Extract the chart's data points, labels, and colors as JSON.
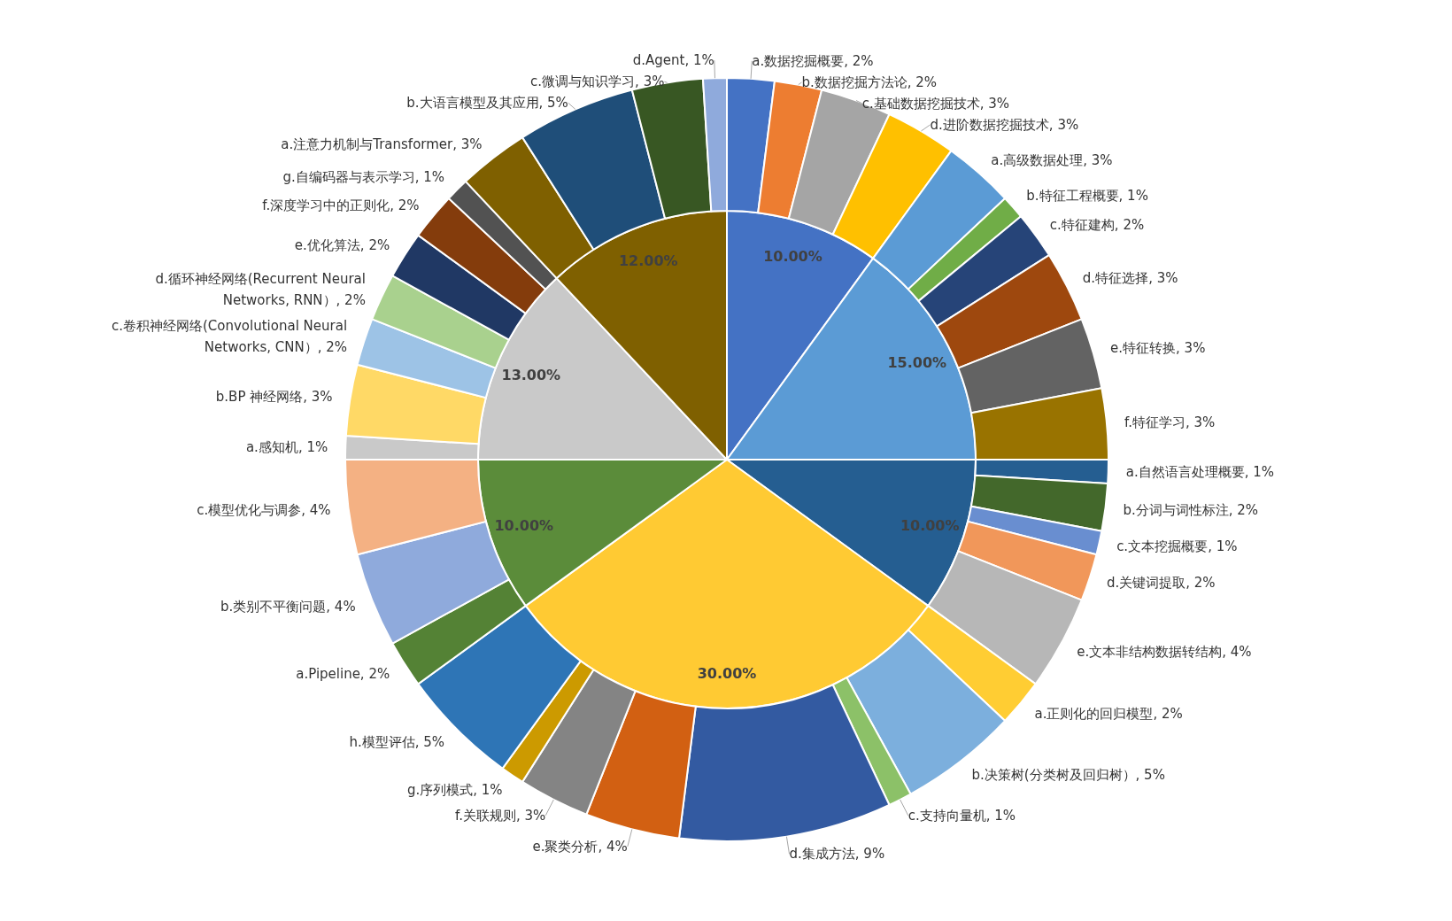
{
  "chart_data": {
    "type": "pie",
    "series": [
      {
        "values": [
          10,
          15,
          10,
          30,
          10,
          13,
          12
        ],
        "value_labels": [
          "10.00%",
          "15.00%",
          "10.00%",
          "30.00%",
          "10.00%",
          "13.00%",
          "12.00%"
        ],
        "colors": [
          "#4472c4",
          "#5b9bd5",
          "#255e91",
          "#ffca33",
          "#5b8c3a",
          "#c9c9c9",
          "#7f6000"
        ]
      },
      {
        "values": [
          2,
          2,
          3,
          3,
          3,
          1,
          2,
          3,
          3,
          3,
          1,
          2,
          1,
          2,
          4,
          2,
          5,
          1,
          9,
          4,
          3,
          1,
          5,
          2,
          4,
          4,
          1,
          3,
          2,
          2,
          2,
          2,
          1,
          3,
          5,
          3,
          1
        ],
        "value_labels": [
          "a.数据挖掘概要, 2%",
          "b.数据挖掘方法论, 2%",
          "c.基础数据挖掘技术, 3%",
          "d.进阶数据挖掘技术, 3%",
          "a.高级数据处理, 3%",
          "b.特征工程概要, 1%",
          "c.特征建构, 2%",
          "d.特征选择, 3%",
          "e.特征转换, 3%",
          "f.特征学习, 3%",
          "a.自然语言处理概要, 1%",
          "b.分词与词性标注, 2%",
          "c.文本挖掘概要, 1%",
          "d.关键词提取, 2%",
          "e.文本非结构数据转结构, 4%",
          "a.正则化的回归模型, 2%",
          "b.决策树(分类树及回归树）, 5%",
          "c.支持向量机, 1%",
          "d.集成方法, 9%",
          "e.聚类分析, 4%",
          "f.关联规则, 3%",
          "g.序列模式, 1%",
          "h.模型评估, 5%",
          "a.Pipeline, 2%",
          "b.类别不平衡问题, 4%",
          "c.模型优化与调参, 4%",
          "a.感知机, 1%",
          "b.BP 神经网络, 3%",
          "c.卷积神经网络(Convolutional Neural Networks, CNN）, 2%",
          "d.循环神经网络(Recurrent Neural Networks, RNN）, 2%",
          "e.优化算法, 2%",
          "f.深度学习中的正则化, 2%",
          "g.自编码器与表示学习, 1%",
          "a.注意力机制与Transformer, 3%",
          "b.大语言模型及其应用, 5%",
          "c.微调与知识学习, 3%",
          "d.Agent, 1%"
        ],
        "colors": [
          "#4472c4",
          "#ed7d31",
          "#a5a5a5",
          "#ffc000",
          "#5b9bd5",
          "#70ad47",
          "#264478",
          "#9e480e",
          "#636363",
          "#997300",
          "#255e91",
          "#43682b",
          "#698ed0",
          "#f1975a",
          "#b7b7b7",
          "#ffcd33",
          "#7cafdd",
          "#8cc168",
          "#335aa1",
          "#d26012",
          "#848484",
          "#cc9a00",
          "#2e75b6",
          "#548235",
          "#8faadc",
          "#f4b183",
          "#c9c9c9",
          "#ffd966",
          "#9dc3e6",
          "#a9d18e",
          "#203864",
          "#843c0c",
          "#525252",
          "#7f6000",
          "#1f4e79",
          "#385723",
          "#8faadc"
        ]
      }
    ]
  }
}
